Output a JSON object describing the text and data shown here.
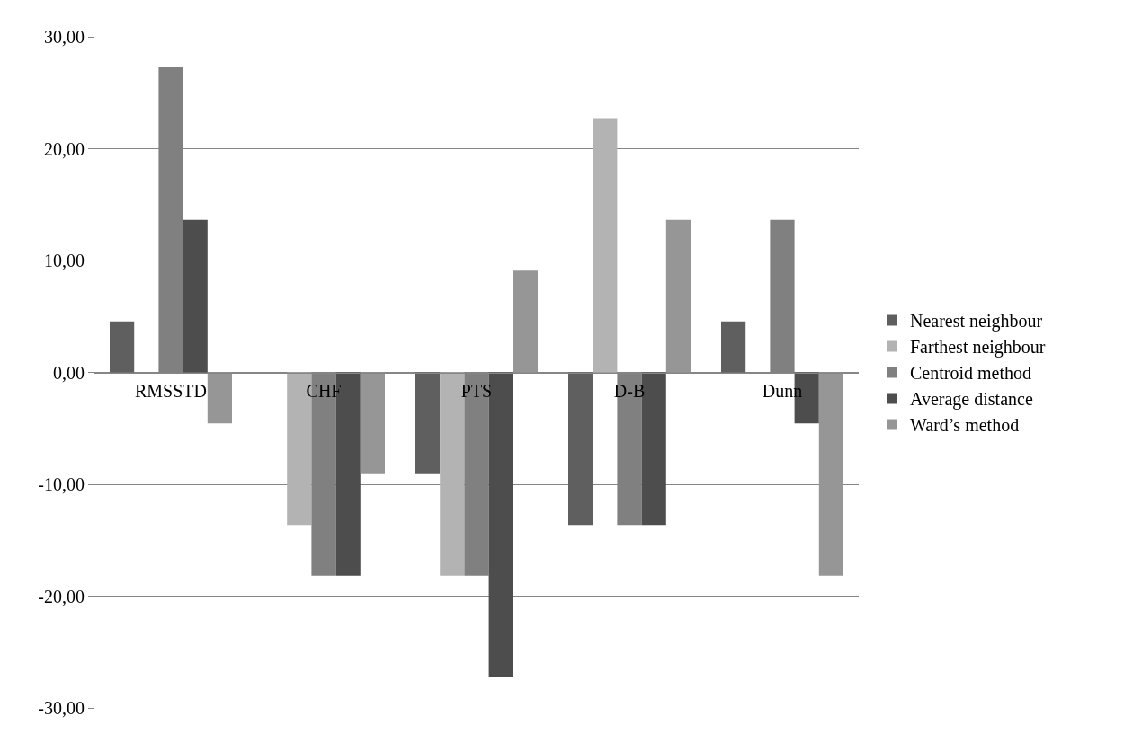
{
  "chart_data": {
    "type": "bar",
    "categories": [
      "RMSSTD",
      "CHF",
      "PTS",
      "D-B",
      "Dunn"
    ],
    "series": [
      {
        "name": "Nearest neighbour",
        "color": "#5f5f5f",
        "values": [
          4.55,
          0,
          -9.09,
          -13.64,
          4.55
        ]
      },
      {
        "name": "Farthest neighbour",
        "color": "#b3b3b3",
        "values": [
          0,
          -13.64,
          -18.18,
          22.73,
          0
        ]
      },
      {
        "name": "Centroid method",
        "color": "#808080",
        "values": [
          27.27,
          -18.18,
          -18.18,
          -13.64,
          13.64
        ]
      },
      {
        "name": "Average distance",
        "color": "#4d4d4d",
        "values": [
          13.64,
          -18.18,
          -27.27,
          -13.64,
          -4.55
        ]
      },
      {
        "name": "Ward’s method",
        "color": "#969696",
        "values": [
          -4.55,
          -9.09,
          9.09,
          13.64,
          -18.18
        ]
      }
    ],
    "ylim": [
      -30,
      30
    ],
    "yticks": [
      {
        "value": -30,
        "label": "-30,00"
      },
      {
        "value": -20,
        "label": "-20,00"
      },
      {
        "value": -10,
        "label": "-10,00"
      },
      {
        "value": 0,
        "label": "0,00"
      },
      {
        "value": 10,
        "label": "10,00"
      },
      {
        "value": 20,
        "label": "20,00"
      },
      {
        "value": 30,
        "label": "30,00"
      }
    ],
    "grid": "y",
    "legend": "right"
  }
}
